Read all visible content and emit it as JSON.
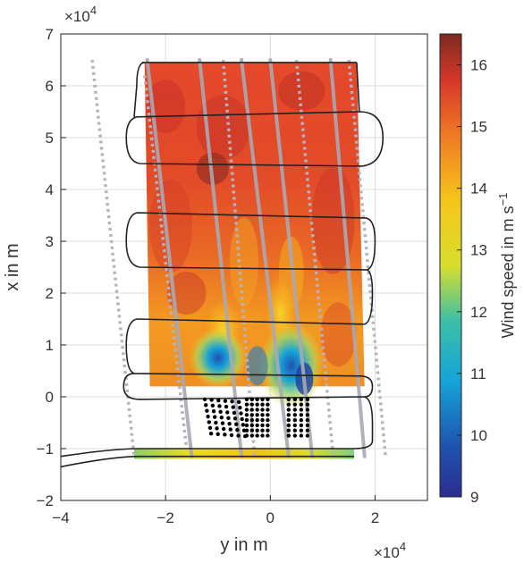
{
  "chart_data": {
    "type": "heatmap",
    "xlabel": "y in m",
    "ylabel": "x in m",
    "x_exponent": "×10^4",
    "y_exponent": "×10^4",
    "xlim": [
      -4,
      3
    ],
    "ylim": [
      -2,
      7
    ],
    "x_ticks": [
      "−4",
      "−2",
      "0",
      "2"
    ],
    "x_tick_values": [
      -4,
      -2,
      0,
      2
    ],
    "y_ticks": [
      "−2",
      "−1",
      "0",
      "1",
      "2",
      "3",
      "4",
      "5",
      "6",
      "7"
    ],
    "y_tick_values": [
      -2,
      -1,
      0,
      1,
      2,
      3,
      4,
      5,
      6,
      7
    ],
    "grid": true,
    "colorbar": {
      "label": "Wind speed in m s",
      "label_superscript": "−1",
      "range": [
        9,
        16.5
      ],
      "ticks": [
        "9",
        "10",
        "11",
        "12",
        "13",
        "14",
        "15",
        "16"
      ],
      "tick_values": [
        9,
        10,
        11,
        12,
        13,
        14,
        15,
        16
      ],
      "colormap": "jet"
    },
    "colors": {
      "flight_track": "#222222",
      "solid_lines": "#a9a9b4",
      "dotted_lines": "#b3b3c2",
      "turbine_dots": "#000000"
    },
    "field_region": {
      "corners": [
        [
          -2.4,
          6.45
        ],
        [
          1.65,
          6.45
        ],
        [
          1.8,
          0.2
        ],
        [
          -2.3,
          0.2
        ]
      ],
      "bottom_strip": {
        "y_range": [
          -2.6,
          1.6
        ],
        "x_range": [
          -1.2,
          -1.0
        ]
      }
    },
    "turbine_cluster": {
      "y_range": [
        -1.3,
        0.8
      ],
      "x_range": [
        -0.8,
        0.0
      ]
    }
  }
}
